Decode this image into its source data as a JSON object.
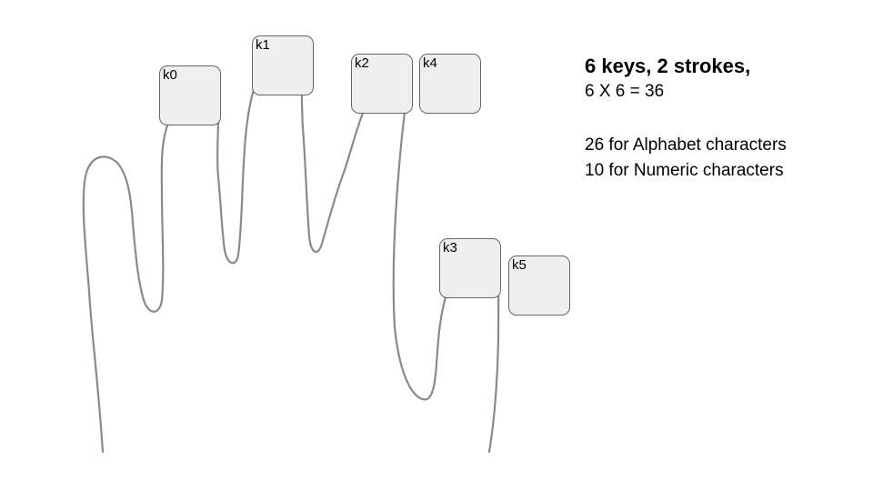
{
  "diagram": {
    "keys": [
      {
        "id": "k0",
        "label": "k0"
      },
      {
        "id": "k1",
        "label": "k1"
      },
      {
        "id": "k2",
        "label": "k2"
      },
      {
        "id": "k4",
        "label": "k4"
      },
      {
        "id": "k3",
        "label": "k3"
      },
      {
        "id": "k5",
        "label": "k5"
      }
    ],
    "colors": {
      "key_fill": "#efefef",
      "key_border": "#666666",
      "hand_outline": "#8a8a8a"
    }
  },
  "text": {
    "headline": "6 keys, 2 strokes,",
    "formula": "6 X 6 = 36",
    "alphabet": "26 for Alphabet characters",
    "numeric": "10 for Numeric characters"
  }
}
